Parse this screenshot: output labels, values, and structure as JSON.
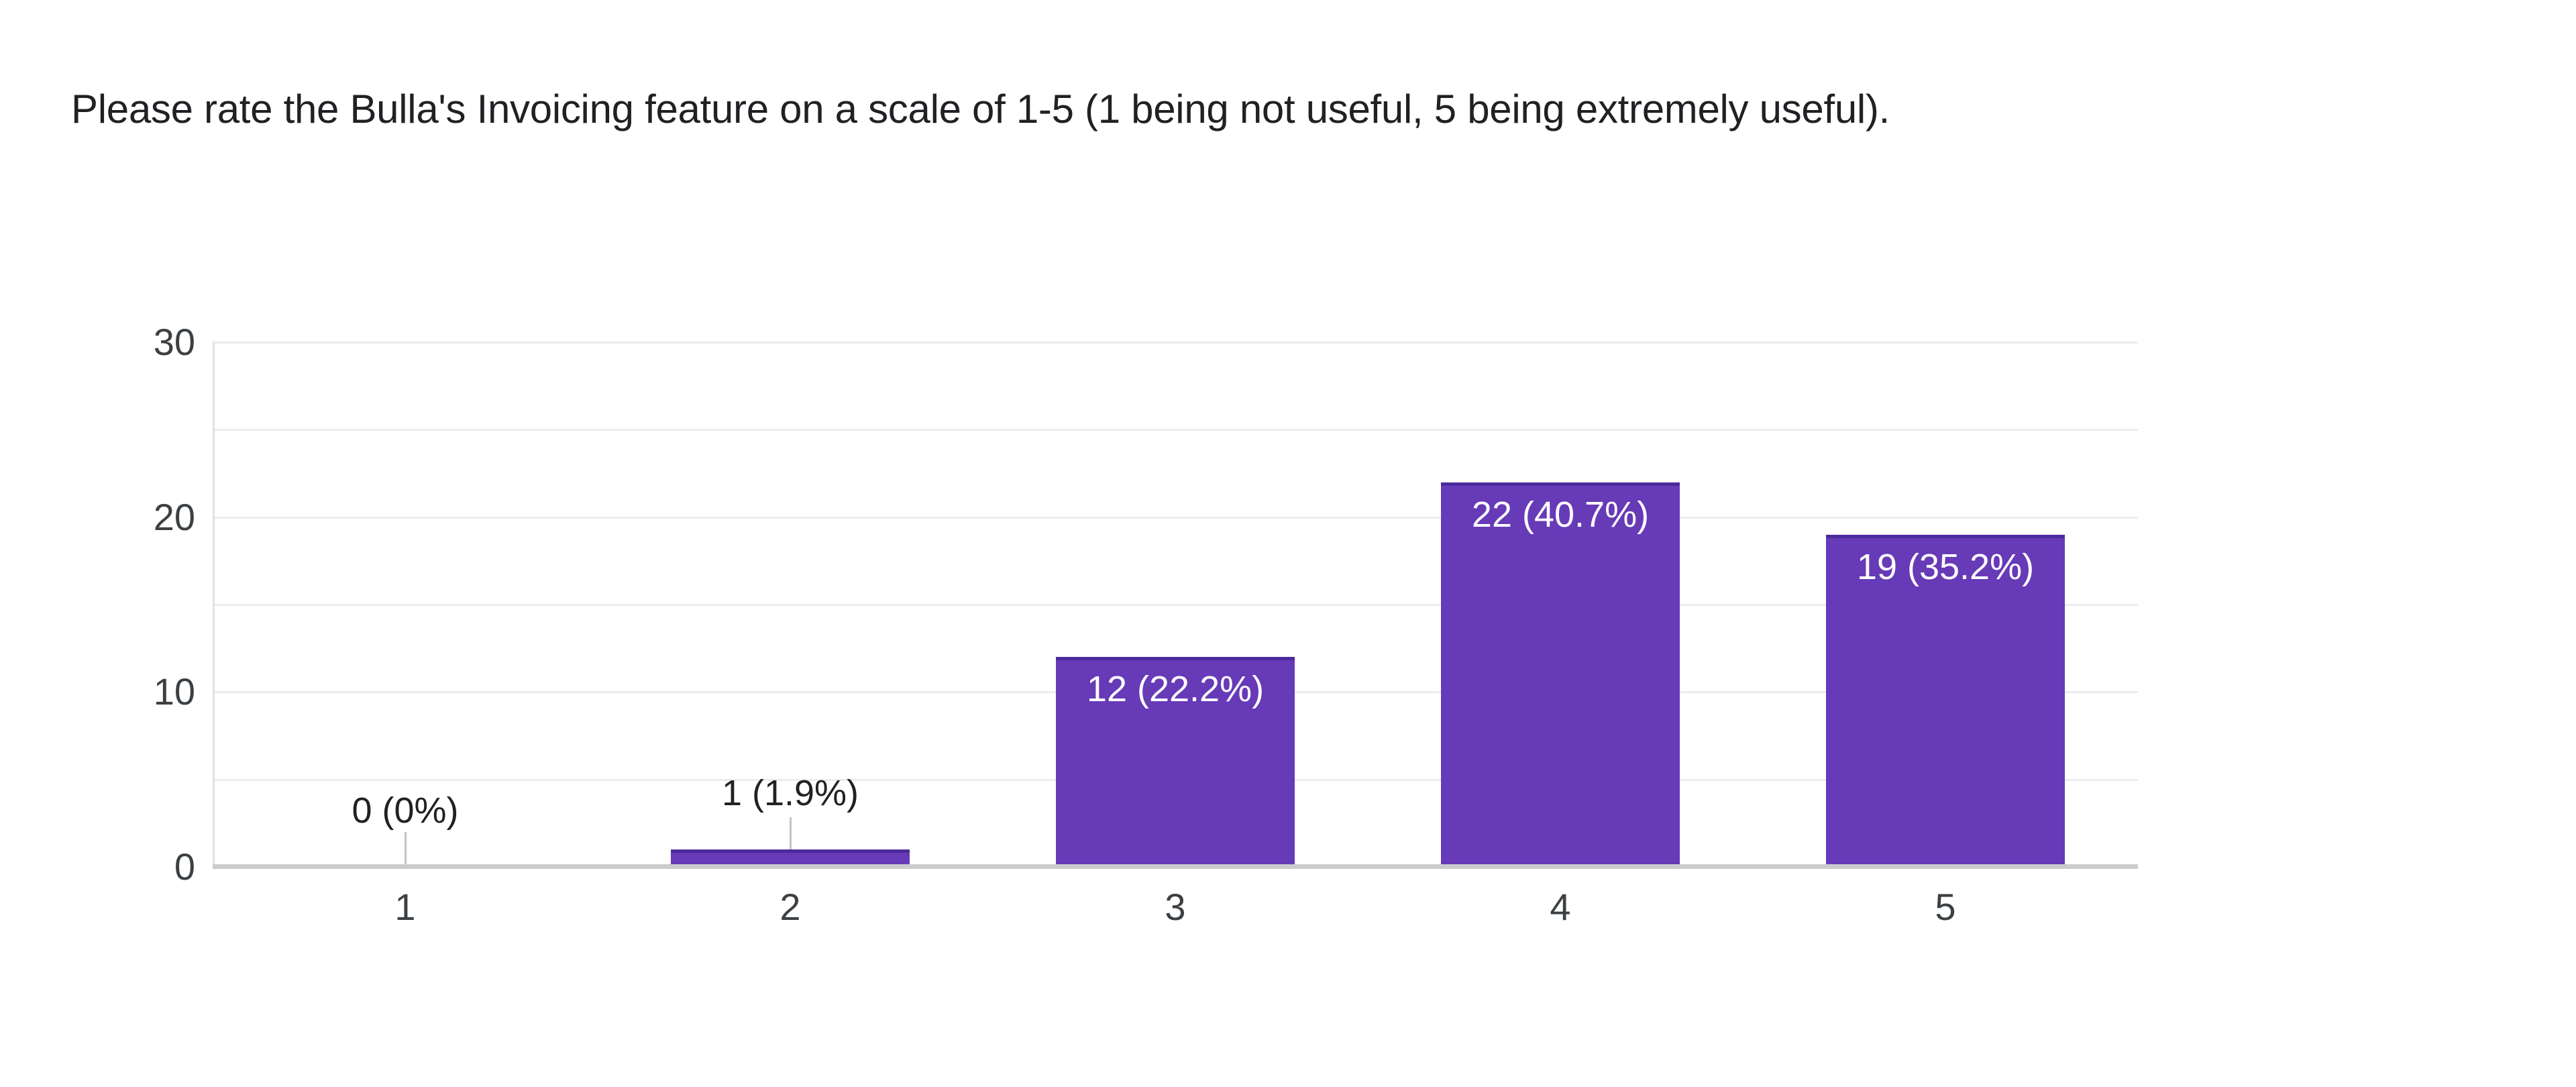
{
  "question": {
    "title": "Please rate the Bulla's Invoicing feature on a scale of 1-5 (1 being not useful, 5 being extremely useful)."
  },
  "chart_data": {
    "type": "bar",
    "categories": [
      "1",
      "2",
      "3",
      "4",
      "5"
    ],
    "values": [
      0,
      1,
      12,
      22,
      19
    ],
    "bar_labels": [
      "0 (0%)",
      "1 (1.9%)",
      "12 (22.2%)",
      "22 (40.7%)",
      "19 (35.2%)"
    ],
    "title": "",
    "xlabel": "",
    "ylabel": "",
    "ylim": [
      0,
      30
    ],
    "yticks": [
      "0",
      "10",
      "20",
      "30"
    ],
    "ytick_values": [
      0,
      10,
      20,
      30
    ],
    "gridline_step": 5,
    "grid": true,
    "legend_position": "none",
    "colors": {
      "bar_fill": "#673ab7",
      "bar_top_edge": "#4b2a9c",
      "label_inside": "#ffffff",
      "label_outside": "#202124",
      "axis_line": "#cccccc",
      "gridline": "#ececec",
      "tick_label": "#3c4043",
      "title_text": "#202124"
    }
  }
}
